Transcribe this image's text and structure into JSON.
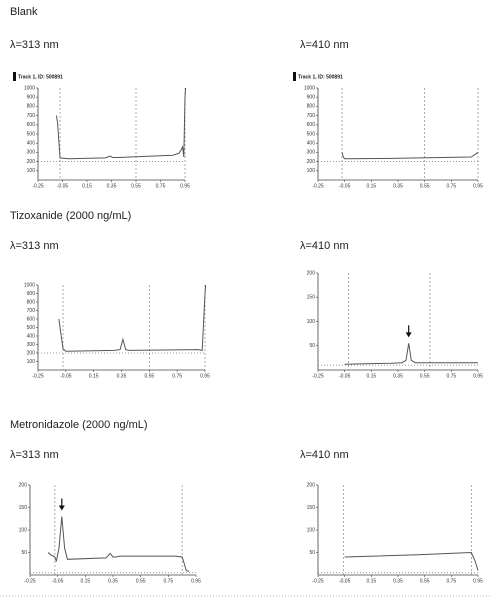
{
  "sections": [
    "Blank",
    "Tizoxanide (2000 ng/mL)",
    "Metronidazole (2000 ng/mL)"
  ],
  "chart_data": [
    {
      "type": "line",
      "title": "λ=313 nm",
      "subtitle": "Track 1, ID: 500891",
      "x": [
        -0.1,
        -0.09,
        -0.07,
        0.0,
        0.3,
        0.34,
        0.36,
        0.4,
        0.85,
        0.9,
        0.92,
        0.93,
        0.94,
        0.95,
        0.955
      ],
      "values": [
        700,
        620,
        240,
        230,
        240,
        260,
        245,
        245,
        270,
        290,
        330,
        360,
        250,
        900,
        1000
      ],
      "color": "#555555",
      "xlim": [
        -0.25,
        0.95
      ],
      "xticks": [
        -0.25,
        -0.05,
        0.15,
        0.35,
        0.55,
        0.75,
        0.95
      ],
      "ylim": [
        0,
        1000
      ],
      "yticks": [
        100,
        200,
        300,
        400,
        500,
        600,
        700,
        800,
        900,
        1000
      ],
      "vlines": [
        -0.07,
        0.55,
        0.95
      ],
      "hline": 200
    },
    {
      "type": "line",
      "title": "λ=410 nm",
      "subtitle": "Track 1, ID: 500891",
      "x": [
        -0.07,
        -0.06,
        -0.05,
        0.3,
        0.9,
        0.94,
        0.95
      ],
      "values": [
        300,
        250,
        230,
        235,
        250,
        290,
        300
      ],
      "color": "#555555",
      "xlim": [
        -0.25,
        0.95
      ],
      "xticks": [
        -0.25,
        -0.05,
        0.15,
        0.35,
        0.55,
        0.75,
        0.95
      ],
      "ylim": [
        0,
        1000
      ],
      "yticks": [
        100,
        200,
        300,
        400,
        500,
        600,
        700,
        800,
        900,
        1000
      ],
      "vlines": [
        -0.07,
        0.55,
        0.95
      ],
      "hline": 200
    },
    {
      "type": "line",
      "title": "λ=313 nm",
      "x": [
        -0.1,
        -0.07,
        -0.05,
        0.3,
        0.34,
        0.36,
        0.38,
        0.4,
        0.9,
        0.93,
        0.95,
        0.955
      ],
      "values": [
        600,
        250,
        220,
        230,
        240,
        360,
        240,
        230,
        240,
        230,
        900,
        1000
      ],
      "color": "#555555",
      "xlim": [
        -0.25,
        0.95
      ],
      "xticks": [
        -0.25,
        -0.05,
        0.15,
        0.35,
        0.55,
        0.75,
        0.95
      ],
      "ylim": [
        0,
        1000
      ],
      "yticks": [
        100,
        200,
        300,
        400,
        500,
        600,
        700,
        800,
        900,
        1000
      ],
      "vlines": [
        -0.07,
        0.55,
        0.95
      ],
      "hline": 200
    },
    {
      "type": "line",
      "title": "λ=410 nm",
      "x": [
        -0.05,
        0.3,
        0.38,
        0.41,
        0.43,
        0.45,
        0.48,
        0.95
      ],
      "values": [
        12,
        14,
        15,
        20,
        55,
        20,
        15,
        15
      ],
      "color": "#555555",
      "xlim": [
        -0.25,
        0.95
      ],
      "xticks": [
        -0.25,
        -0.05,
        0.15,
        0.35,
        0.55,
        0.75,
        0.95
      ],
      "ylim": [
        0,
        200
      ],
      "yticks": [
        50,
        100,
        150,
        200
      ],
      "vlines": [
        -0.02,
        0.59
      ],
      "hline": 10,
      "arrow": true
    },
    {
      "type": "line",
      "title": "λ=313 nm",
      "x": [
        -0.12,
        -0.1,
        -0.07,
        -0.06,
        -0.04,
        -0.02,
        0.0,
        0.02,
        0.3,
        0.33,
        0.35,
        0.37,
        0.4,
        0.8,
        0.85,
        0.88,
        0.9
      ],
      "values": [
        50,
        45,
        40,
        30,
        60,
        130,
        60,
        35,
        38,
        48,
        40,
        40,
        42,
        42,
        40,
        10,
        8
      ],
      "color": "#555555",
      "xlim": [
        -0.25,
        0.95
      ],
      "xticks": [
        -0.25,
        -0.05,
        0.15,
        0.35,
        0.55,
        0.75,
        0.95
      ],
      "ylim": [
        0,
        200
      ],
      "yticks": [
        50,
        100,
        150,
        200
      ],
      "vlines": [
        -0.07,
        0.85
      ],
      "hline": 5,
      "arrow": true
    },
    {
      "type": "line",
      "title": "λ=410 nm",
      "x": [
        -0.05,
        0.5,
        0.9,
        0.93,
        0.95
      ],
      "values": [
        40,
        45,
        50,
        30,
        10
      ],
      "color": "#555555",
      "xlim": [
        -0.25,
        0.95
      ],
      "xticks": [
        -0.25,
        -0.05,
        0.15,
        0.35,
        0.55,
        0.75,
        0.95
      ],
      "ylim": [
        0,
        200
      ],
      "yticks": [
        50,
        100,
        150,
        200
      ],
      "vlines": [
        -0.06,
        0.9
      ],
      "hline": 5
    }
  ]
}
